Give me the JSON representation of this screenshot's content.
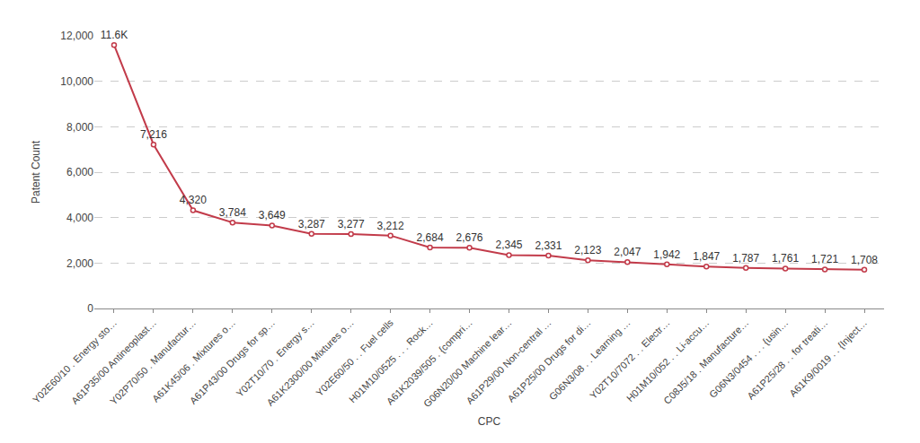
{
  "chart_data": {
    "type": "line",
    "x_label": "CPC",
    "y_label": "Patent Count",
    "categories": [
      "Y02E60/10 . Energy sto…",
      "A61P35/00 Antineoplast…",
      "Y02P70/50 . Manufactur…",
      "A61K45/06 . Mixtures o…",
      "A61P43/00 Drugs for sp…",
      "Y02T10/70 . Energy s…",
      "A61K2300/00 Mixtures o…",
      "Y02E60/50 . . Fuel cells",
      "H01M10/0525 . . . Rock…",
      "A61K2039/505 . {compri…",
      "G06N20/00 Machine lear…",
      "A61P29/00 Non-central …",
      "A61P25/00 Drugs for di…",
      "G06N3/08 . . Learning …",
      "Y02T10/7072 . . Electr…",
      "H01M10/052 . . Li-accu…",
      "C08J5/18 . Manufacture…",
      "G06N3/0454 . . . {usin…",
      "A61P25/28 . . for treati…",
      "A61K9/0019 . . {Inject…"
    ],
    "values": [
      11600,
      7216,
      4320,
      3784,
      3649,
      3287,
      3277,
      3212,
      2684,
      2676,
      2345,
      2331,
      2123,
      2047,
      1942,
      1847,
      1787,
      1761,
      1721,
      1708
    ],
    "value_labels": [
      "11.6K",
      "7,216",
      "4,320",
      "3,784",
      "3,649",
      "3,287",
      "3,277",
      "3,212",
      "2,684",
      "2,676",
      "2,345",
      "2,331",
      "2,123",
      "2,047",
      "1,942",
      "1,847",
      "1,787",
      "1,761",
      "1,721",
      "1,708"
    ],
    "data_labels": true,
    "color": "#c23b4a",
    "marker": "circle-open",
    "ylim": [
      0,
      12000
    ],
    "yticks": [
      0,
      {
        "value": 2000,
        "label": "2,000"
      },
      {
        "value": 4000,
        "label": "4,000"
      },
      {
        "value": 6000,
        "label": "6,000"
      },
      {
        "value": 8000,
        "label": "8,000"
      },
      {
        "value": 10000,
        "label": "10,000"
      },
      {
        "value": 12000,
        "label": "12,000"
      }
    ],
    "grid": true
  }
}
